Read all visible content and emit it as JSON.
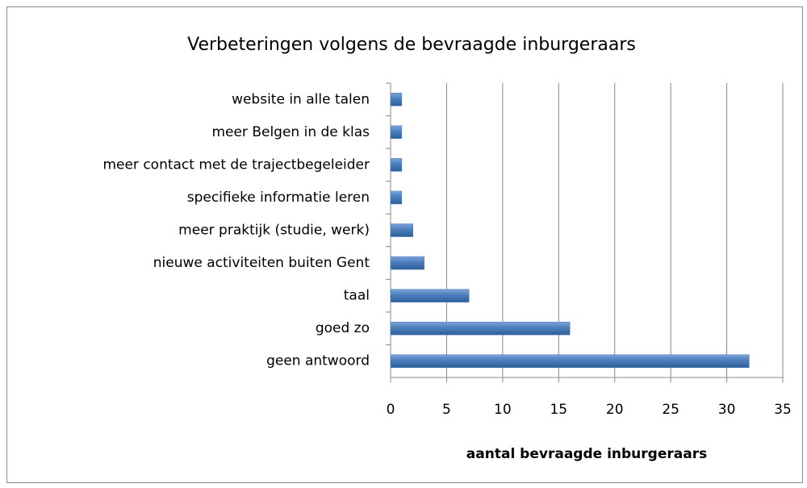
{
  "chart_data": {
    "type": "bar",
    "orientation": "horizontal",
    "title": "Verbeteringen volgens de bevraagde inburgeraars",
    "x_label": "aantal bevraagde inburgeraars",
    "categories": [
      "website in alle talen",
      "meer Belgen in de klas",
      "meer contact met de trajectbegeleider",
      "specifieke informatie leren",
      "meer praktijk (studie, werk)",
      "nieuwe activiteiten buiten Gent",
      "taal",
      "goed zo",
      "geen antwoord"
    ],
    "values": [
      1,
      1,
      1,
      1,
      2,
      3,
      7,
      16,
      32
    ],
    "color": "#4a7ebb",
    "xlim": [
      0,
      35
    ],
    "xticks": [
      0,
      5,
      10,
      15,
      20,
      25,
      30,
      35
    ],
    "grid": true
  }
}
